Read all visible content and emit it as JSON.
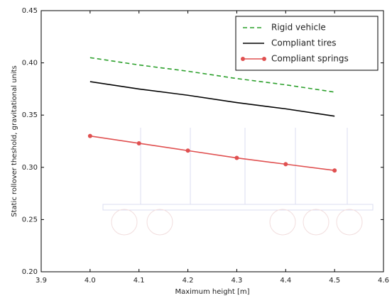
{
  "chart_data": {
    "type": "line",
    "xlabel": "Maximum height [m]",
    "ylabel": "Static rollover theshold, gravitational units",
    "x": [
      4.0,
      4.1,
      4.2,
      4.3,
      4.4,
      4.5
    ],
    "series": [
      {
        "name": "Rigid vehicle",
        "color": "#2ca02c",
        "dash": true,
        "marker": false,
        "values": [
          0.405,
          0.398,
          0.392,
          0.385,
          0.379,
          0.372
        ]
      },
      {
        "name": "Compliant tires",
        "color": "#000000",
        "dash": false,
        "marker": false,
        "values": [
          0.382,
          0.375,
          0.369,
          0.362,
          0.356,
          0.349
        ]
      },
      {
        "name": "Compliant springs",
        "color": "#e05050",
        "dash": false,
        "marker": true,
        "values": [
          0.33,
          0.323,
          0.316,
          0.309,
          0.303,
          0.297
        ]
      }
    ],
    "xlim": [
      3.9,
      4.6
    ],
    "xticks": [
      3.9,
      {
        "value": 4,
        "label": "4.0"
      },
      4.1,
      4.2,
      4.3,
      4.4,
      4.5,
      4.6
    ],
    "ylim": [
      0.2,
      0.45
    ],
    "yticks": [
      {
        "value": 0.2,
        "label": "0.20"
      },
      0.25,
      {
        "value": 0.3,
        "label": "0.30"
      },
      0.35,
      {
        "value": 0.4,
        "label": "0.40"
      },
      0.45
    ],
    "legend": "upper right"
  }
}
